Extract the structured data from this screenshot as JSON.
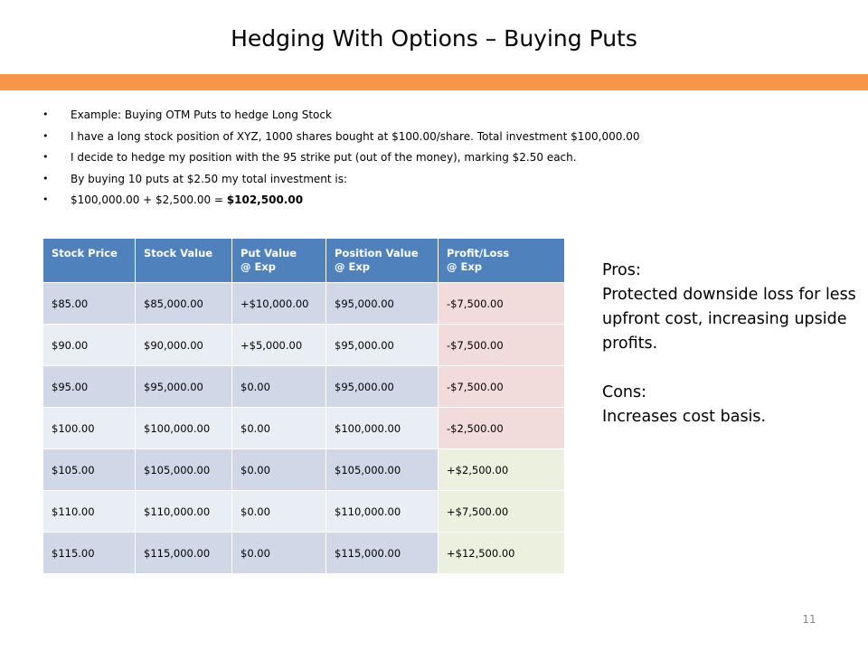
{
  "slide": {
    "title": "Hedging With Options – Buying Puts",
    "page_number": "11",
    "accent_color": "#f79646"
  },
  "bullets": [
    "Example:  Buying OTM Puts to hedge Long Stock",
    "I have a long stock position of XYZ, 1000 shares bought at $100.00/share.  Total investment $100,000.00",
    "I decide to hedge my position with the 95 strike put (out of the money), marking $2.50 each.",
    "By buying 10 puts at $2.50 my total investment is:"
  ],
  "bullet_last": {
    "prefix": "$100,000.00 + $2,500.00 = ",
    "bold": "$102,500.00"
  },
  "table": {
    "headers": [
      "Stock Price",
      "Stock Value",
      "Put Value",
      "@ Exp",
      "Position Value",
      "@ Exp",
      "Profit/Loss",
      "@ Exp"
    ],
    "rows": [
      [
        "$85.00",
        "$85,000.00",
        "+$10,000.00",
        "$95,000.00",
        "-$7,500.00"
      ],
      [
        "$90.00",
        "$90,000.00",
        "+$5,000.00",
        "$95,000.00",
        "-$7,500.00"
      ],
      [
        "$95.00",
        "$95,000.00",
        "$0.00",
        "$95,000.00",
        "-$7,500.00"
      ],
      [
        "$100.00",
        "$100,000.00",
        "$0.00",
        "$100,000.00",
        "-$2,500.00"
      ],
      [
        "$105.00",
        "$105,000.00",
        "$0.00",
        "$105,000.00",
        "+$2,500.00"
      ],
      [
        "$110.00",
        "$110,000.00",
        "$0.00",
        "$110,000.00",
        "+$7,500.00"
      ],
      [
        "$115.00",
        "$115,000.00",
        "$0.00",
        "$115,000.00",
        "+$12,500.00"
      ]
    ],
    "colors": {
      "header": "#4f81bd",
      "row_dark": "#d0d8e8",
      "row_light": "#e9edf4",
      "loss": "#f2dcdb",
      "profit": "#ebf1de"
    }
  },
  "side": {
    "pros_label": "Pros:",
    "pros_text": "Protected downside loss for less upfront cost, increasing upside profits.",
    "cons_label": "Cons:",
    "cons_text": "Increases cost basis."
  }
}
